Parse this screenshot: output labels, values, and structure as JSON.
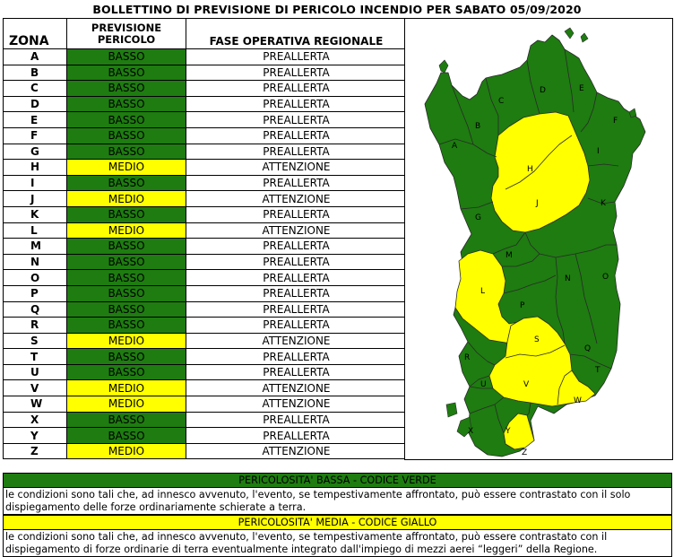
{
  "title": "BOLLETTINO DI PREVISIONE DI PERICOLO INCENDIO PER SABATO 05/09/2020",
  "headers": {
    "zona": "ZONA",
    "previsione": "PREVISIONE PERICOLO",
    "fase": "FASE OPERATIVA REGIONALE"
  },
  "colors": {
    "basso": "#1e7c10",
    "medio": "#ffff00"
  },
  "rows": [
    {
      "zona": "A",
      "livello": "BASSO",
      "fase": "PREALLERTA",
      "color": "#1e7c10"
    },
    {
      "zona": "B",
      "livello": "BASSO",
      "fase": "PREALLERTA",
      "color": "#1e7c10"
    },
    {
      "zona": "C",
      "livello": "BASSO",
      "fase": "PREALLERTA",
      "color": "#1e7c10"
    },
    {
      "zona": "D",
      "livello": "BASSO",
      "fase": "PREALLERTA",
      "color": "#1e7c10"
    },
    {
      "zona": "E",
      "livello": "BASSO",
      "fase": "PREALLERTA",
      "color": "#1e7c10"
    },
    {
      "zona": "F",
      "livello": "BASSO",
      "fase": "PREALLERTA",
      "color": "#1e7c10"
    },
    {
      "zona": "G",
      "livello": "BASSO",
      "fase": "PREALLERTA",
      "color": "#1e7c10"
    },
    {
      "zona": "H",
      "livello": "MEDIO",
      "fase": "ATTENZIONE",
      "color": "#ffff00"
    },
    {
      "zona": "I",
      "livello": "BASSO",
      "fase": "PREALLERTA",
      "color": "#1e7c10"
    },
    {
      "zona": "J",
      "livello": "MEDIO",
      "fase": "ATTENZIONE",
      "color": "#ffff00"
    },
    {
      "zona": "K",
      "livello": "BASSO",
      "fase": "PREALLERTA",
      "color": "#1e7c10"
    },
    {
      "zona": "L",
      "livello": "MEDIO",
      "fase": "ATTENZIONE",
      "color": "#ffff00"
    },
    {
      "zona": "M",
      "livello": "BASSO",
      "fase": "PREALLERTA",
      "color": "#1e7c10"
    },
    {
      "zona": "N",
      "livello": "BASSO",
      "fase": "PREALLERTA",
      "color": "#1e7c10"
    },
    {
      "zona": "O",
      "livello": "BASSO",
      "fase": "PREALLERTA",
      "color": "#1e7c10"
    },
    {
      "zona": "P",
      "livello": "BASSO",
      "fase": "PREALLERTA",
      "color": "#1e7c10"
    },
    {
      "zona": "Q",
      "livello": "BASSO",
      "fase": "PREALLERTA",
      "color": "#1e7c10"
    },
    {
      "zona": "R",
      "livello": "BASSO",
      "fase": "PREALLERTA",
      "color": "#1e7c10"
    },
    {
      "zona": "S",
      "livello": "MEDIO",
      "fase": "ATTENZIONE",
      "color": "#ffff00"
    },
    {
      "zona": "T",
      "livello": "BASSO",
      "fase": "PREALLERTA",
      "color": "#1e7c10"
    },
    {
      "zona": "U",
      "livello": "BASSO",
      "fase": "PREALLERTA",
      "color": "#1e7c10"
    },
    {
      "zona": "V",
      "livello": "MEDIO",
      "fase": "ATTENZIONE",
      "color": "#ffff00"
    },
    {
      "zona": "W",
      "livello": "MEDIO",
      "fase": "ATTENZIONE",
      "color": "#ffff00"
    },
    {
      "zona": "X",
      "livello": "BASSO",
      "fase": "PREALLERTA",
      "color": "#1e7c10"
    },
    {
      "zona": "Y",
      "livello": "BASSO",
      "fase": "PREALLERTA",
      "color": "#1e7c10"
    },
    {
      "zona": "Z",
      "livello": "MEDIO",
      "fase": "ATTENZIONE",
      "color": "#ffff00"
    }
  ],
  "map": {
    "labels": [
      "A",
      "B",
      "C",
      "D",
      "E",
      "F",
      "G",
      "H",
      "I",
      "J",
      "K",
      "L",
      "M",
      "N",
      "O",
      "P",
      "Q",
      "R",
      "S",
      "T",
      "U",
      "V",
      "W",
      "X",
      "Y",
      "Z"
    ]
  },
  "legend": {
    "bassa_title": "PERICOLOSITA' BASSA - CODICE VERDE",
    "bassa_text": "le condizioni sono tali che, ad innesco avvenuto, l'evento, se tempestivamente affrontato, può essere contrastato con il solo dispiegamento delle forze ordinariamente schierate a terra.",
    "media_title": "PERICOLOSITA' MEDIA - CODICE GIALLO",
    "media_text": "le condizioni sono tali che, ad innesco avvenuto, l'evento, se tempestivamente affrontato, può essere contrastato con il dispiegamento di forze ordinarie di terra eventualmente integrato dall'impiego di mezzi aerei “leggeri” della Regione."
  }
}
